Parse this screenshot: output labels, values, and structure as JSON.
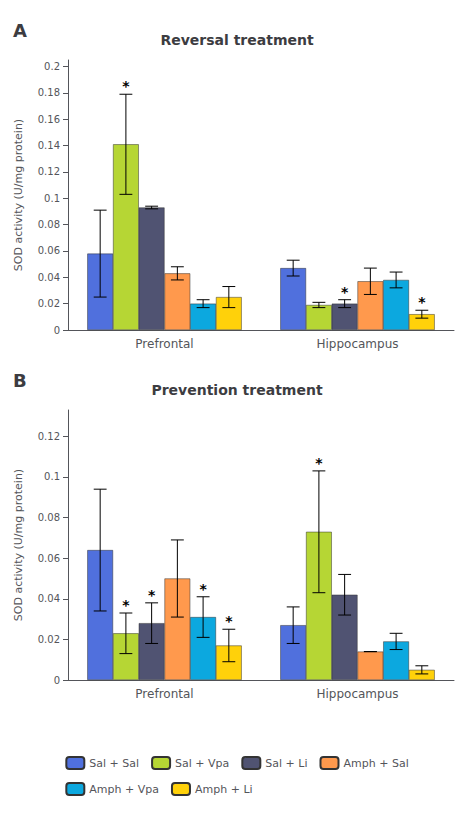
{
  "chart_data": [
    {
      "type": "bar",
      "title": "Reversal treatment",
      "panel_label": "A",
      "ylabel": "SOD activity (U/mg protein)",
      "categories": [
        "Prefrontal",
        "Hippocampus"
      ],
      "ylim": [
        0,
        0.205
      ],
      "yticks": [
        0,
        0.02,
        0.04,
        0.06,
        0.08,
        0.1,
        0.12,
        0.14,
        0.16,
        0.18,
        0.2
      ],
      "grid": false,
      "legend": "bottom",
      "series": [
        {
          "name": "Sal + Sal",
          "values": [
            0.058,
            0.047
          ],
          "errors": [
            0.033,
            0.006
          ],
          "annotations": [
            null,
            null
          ]
        },
        {
          "name": "Sal + Vpa",
          "values": [
            0.141,
            0.019
          ],
          "errors": [
            0.038,
            0.002
          ],
          "annotations": [
            "*",
            null
          ]
        },
        {
          "name": "Sal + Li",
          "values": [
            0.093,
            0.02
          ],
          "errors": [
            0.001,
            0.003
          ],
          "annotations": [
            null,
            "*"
          ]
        },
        {
          "name": "Amph + Sal",
          "values": [
            0.043,
            0.037
          ],
          "errors": [
            0.005,
            0.01
          ],
          "annotations": [
            null,
            null
          ]
        },
        {
          "name": "Amph + Vpa",
          "values": [
            0.02,
            0.038
          ],
          "errors": [
            0.003,
            0.006
          ],
          "annotations": [
            null,
            null
          ]
        },
        {
          "name": "Amph + Li",
          "values": [
            0.025,
            0.012
          ],
          "errors": [
            0.008,
            0.003
          ],
          "annotations": [
            null,
            "*"
          ]
        }
      ]
    },
    {
      "type": "bar",
      "title": "Prevention treatment",
      "panel_label": "B",
      "ylabel": "SOD activity (U/mg protein)",
      "categories": [
        "Prefrontal",
        "Hippocampus"
      ],
      "ylim": [
        0,
        0.133
      ],
      "yticks": [
        0,
        0.02,
        0.04,
        0.06,
        0.08,
        0.1,
        0.12
      ],
      "grid": false,
      "legend": "bottom",
      "series": [
        {
          "name": "Sal + Sal",
          "values": [
            0.064,
            0.027
          ],
          "errors": [
            0.03,
            0.009
          ],
          "annotations": [
            null,
            null
          ]
        },
        {
          "name": "Sal + Vpa",
          "values": [
            0.023,
            0.073
          ],
          "errors": [
            0.01,
            0.03
          ],
          "annotations": [
            "*",
            "*"
          ]
        },
        {
          "name": "Sal + Li",
          "values": [
            0.028,
            0.042
          ],
          "errors": [
            0.01,
            0.01
          ],
          "annotations": [
            "*",
            null
          ]
        },
        {
          "name": "Amph + Sal",
          "values": [
            0.05,
            0.014
          ],
          "errors": [
            0.019,
            0.0
          ],
          "annotations": [
            null,
            null
          ]
        },
        {
          "name": "Amph + Vpa",
          "values": [
            0.031,
            0.019
          ],
          "errors": [
            0.01,
            0.004
          ],
          "annotations": [
            "*",
            null
          ]
        },
        {
          "name": "Amph + Li",
          "values": [
            0.017,
            0.005
          ],
          "errors": [
            0.008,
            0.002
          ],
          "annotations": [
            "*",
            null
          ]
        }
      ]
    }
  ]
}
